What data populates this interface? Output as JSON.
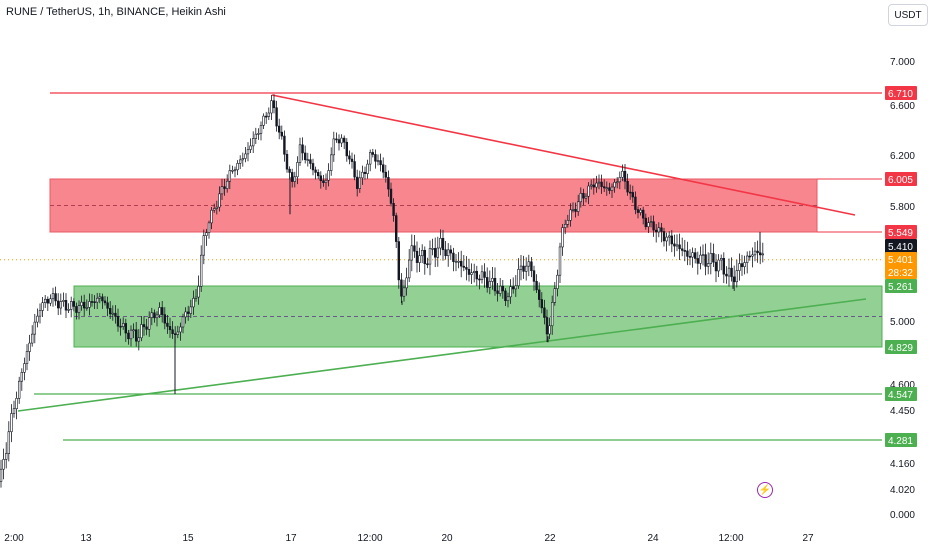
{
  "header": {
    "title": "RUNE / TetherUS, 1h, BINANCE, Heikin Ashi"
  },
  "currency_button": "USDT",
  "colors": {
    "resistance_red": "#f23645",
    "support_green": "#4caf50",
    "red_zone_fill": "#f7868f",
    "green_zone_fill": "#93d094",
    "candle": "#131722",
    "price_line": "#ff9800"
  },
  "icons": {
    "alert": "bolt-icon"
  },
  "chart_data": {
    "type": "candlestick",
    "style": "Heikin Ashi",
    "interval": "1h",
    "symbol": "RUNE / TetherUS",
    "exchange": "BINANCE",
    "x_ticks": [
      "2:00",
      "13",
      "15",
      "17",
      "12:00",
      "20",
      "22",
      "24",
      "12:00",
      "27"
    ],
    "y_ticks": [
      "7.000",
      "6.600",
      "6.200",
      "5.800",
      "5.000",
      "4.600",
      "4.450",
      "4.160",
      "4.020",
      "0.000"
    ],
    "price_labels": [
      {
        "text": "6.710",
        "kind": "red"
      },
      {
        "text": "6.005",
        "kind": "red"
      },
      {
        "text": "5.549",
        "kind": "red"
      },
      {
        "text": "5.410",
        "kind": "last"
      },
      {
        "text": "5.401",
        "kind": "orange"
      },
      {
        "text": "28:32",
        "kind": "orange"
      },
      {
        "text": "5.261",
        "kind": "green"
      },
      {
        "text": "4.829",
        "kind": "green"
      },
      {
        "text": "4.547",
        "kind": "green"
      },
      {
        "text": "4.281",
        "kind": "green"
      }
    ],
    "levels": {
      "resistance_top": 6.71,
      "red_zone": [
        5.549,
        6.005
      ],
      "green_zone": [
        4.829,
        5.261
      ],
      "support_1": 4.547,
      "support_2": 4.281,
      "current_price": 5.401
    },
    "close_path": [
      [
        0,
        4.06
      ],
      [
        12,
        4.42
      ],
      [
        25,
        4.75
      ],
      [
        40,
        5.1
      ],
      [
        50,
        5.18
      ],
      [
        62,
        5.12
      ],
      [
        75,
        5.1
      ],
      [
        88,
        5.12
      ],
      [
        100,
        5.18
      ],
      [
        112,
        5.05
      ],
      [
        125,
        4.93
      ],
      [
        138,
        4.9
      ],
      [
        150,
        5.02
      ],
      [
        160,
        5.08
      ],
      [
        168,
        4.95
      ],
      [
        176,
        4.9
      ],
      [
        185,
        5.05
      ],
      [
        195,
        5.15
      ],
      [
        205,
        5.55
      ],
      [
        215,
        5.8
      ],
      [
        230,
        6.05
      ],
      [
        245,
        6.2
      ],
      [
        260,
        6.42
      ],
      [
        272,
        6.62
      ],
      [
        282,
        6.3
      ],
      [
        292,
        5.95
      ],
      [
        300,
        6.25
      ],
      [
        312,
        6.1
      ],
      [
        325,
        5.95
      ],
      [
        335,
        6.35
      ],
      [
        345,
        6.28
      ],
      [
        358,
        5.95
      ],
      [
        372,
        6.22
      ],
      [
        385,
        6.05
      ],
      [
        393,
        5.75
      ],
      [
        398,
        5.35
      ],
      [
        402,
        5.15
      ],
      [
        410,
        5.45
      ],
      [
        425,
        5.4
      ],
      [
        440,
        5.48
      ],
      [
        455,
        5.4
      ],
      [
        470,
        5.33
      ],
      [
        485,
        5.3
      ],
      [
        495,
        5.25
      ],
      [
        508,
        5.18
      ],
      [
        520,
        5.35
      ],
      [
        530,
        5.38
      ],
      [
        540,
        5.15
      ],
      [
        548,
        4.9
      ],
      [
        556,
        5.3
      ],
      [
        565,
        5.65
      ],
      [
        580,
        5.85
      ],
      [
        595,
        5.98
      ],
      [
        610,
        5.92
      ],
      [
        622,
        6.05
      ],
      [
        632,
        5.85
      ],
      [
        645,
        5.65
      ],
      [
        660,
        5.55
      ],
      [
        675,
        5.48
      ],
      [
        690,
        5.42
      ],
      [
        705,
        5.4
      ],
      [
        720,
        5.38
      ],
      [
        732,
        5.3
      ],
      [
        745,
        5.4
      ],
      [
        757,
        5.45
      ],
      [
        765,
        5.4
      ]
    ]
  }
}
